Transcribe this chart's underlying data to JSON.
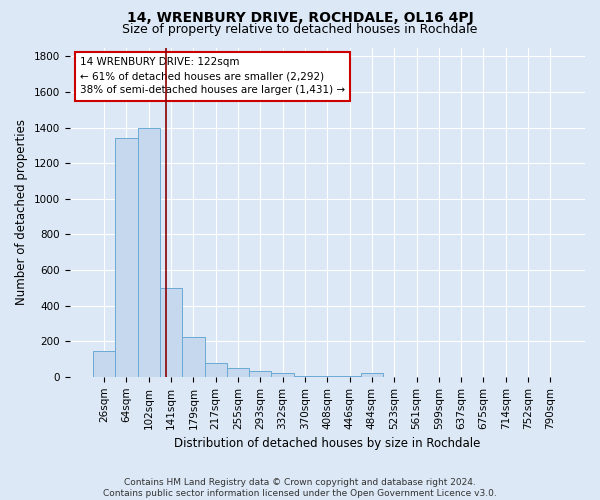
{
  "title": "14, WRENBURY DRIVE, ROCHDALE, OL16 4PJ",
  "subtitle": "Size of property relative to detached houses in Rochdale",
  "xlabel": "Distribution of detached houses by size in Rochdale",
  "ylabel": "Number of detached properties",
  "footer_line1": "Contains HM Land Registry data © Crown copyright and database right 2024.",
  "footer_line2": "Contains public sector information licensed under the Open Government Licence v3.0.",
  "categories": [
    "26sqm",
    "64sqm",
    "102sqm",
    "141sqm",
    "179sqm",
    "217sqm",
    "255sqm",
    "293sqm",
    "332sqm",
    "370sqm",
    "408sqm",
    "446sqm",
    "484sqm",
    "523sqm",
    "561sqm",
    "599sqm",
    "637sqm",
    "675sqm",
    "714sqm",
    "752sqm",
    "790sqm"
  ],
  "values": [
    145,
    1340,
    1395,
    500,
    225,
    80,
    50,
    30,
    20,
    5,
    5,
    5,
    20,
    0,
    0,
    0,
    0,
    0,
    0,
    0,
    0
  ],
  "bar_color": "#c5d8ee",
  "bar_edge_color": "#6aaad4",
  "property_line_x": 2.77,
  "property_line_color": "#8b0000",
  "annotation_line1": "14 WRENBURY DRIVE: 122sqm",
  "annotation_line2": "← 61% of detached houses are smaller (2,292)",
  "annotation_line3": "38% of semi-detached houses are larger (1,431) →",
  "annotation_box_color": "white",
  "annotation_box_edge_color": "#cc0000",
  "ylim": [
    0,
    1850
  ],
  "yticks": [
    0,
    200,
    400,
    600,
    800,
    1000,
    1200,
    1400,
    1600,
    1800
  ],
  "background_color": "#dce8f5",
  "plot_bg_color": "#dce8f5",
  "grid_color": "white",
  "title_fontsize": 10,
  "subtitle_fontsize": 9,
  "axis_label_fontsize": 8.5,
  "tick_fontsize": 7.5,
  "footer_fontsize": 6.5
}
